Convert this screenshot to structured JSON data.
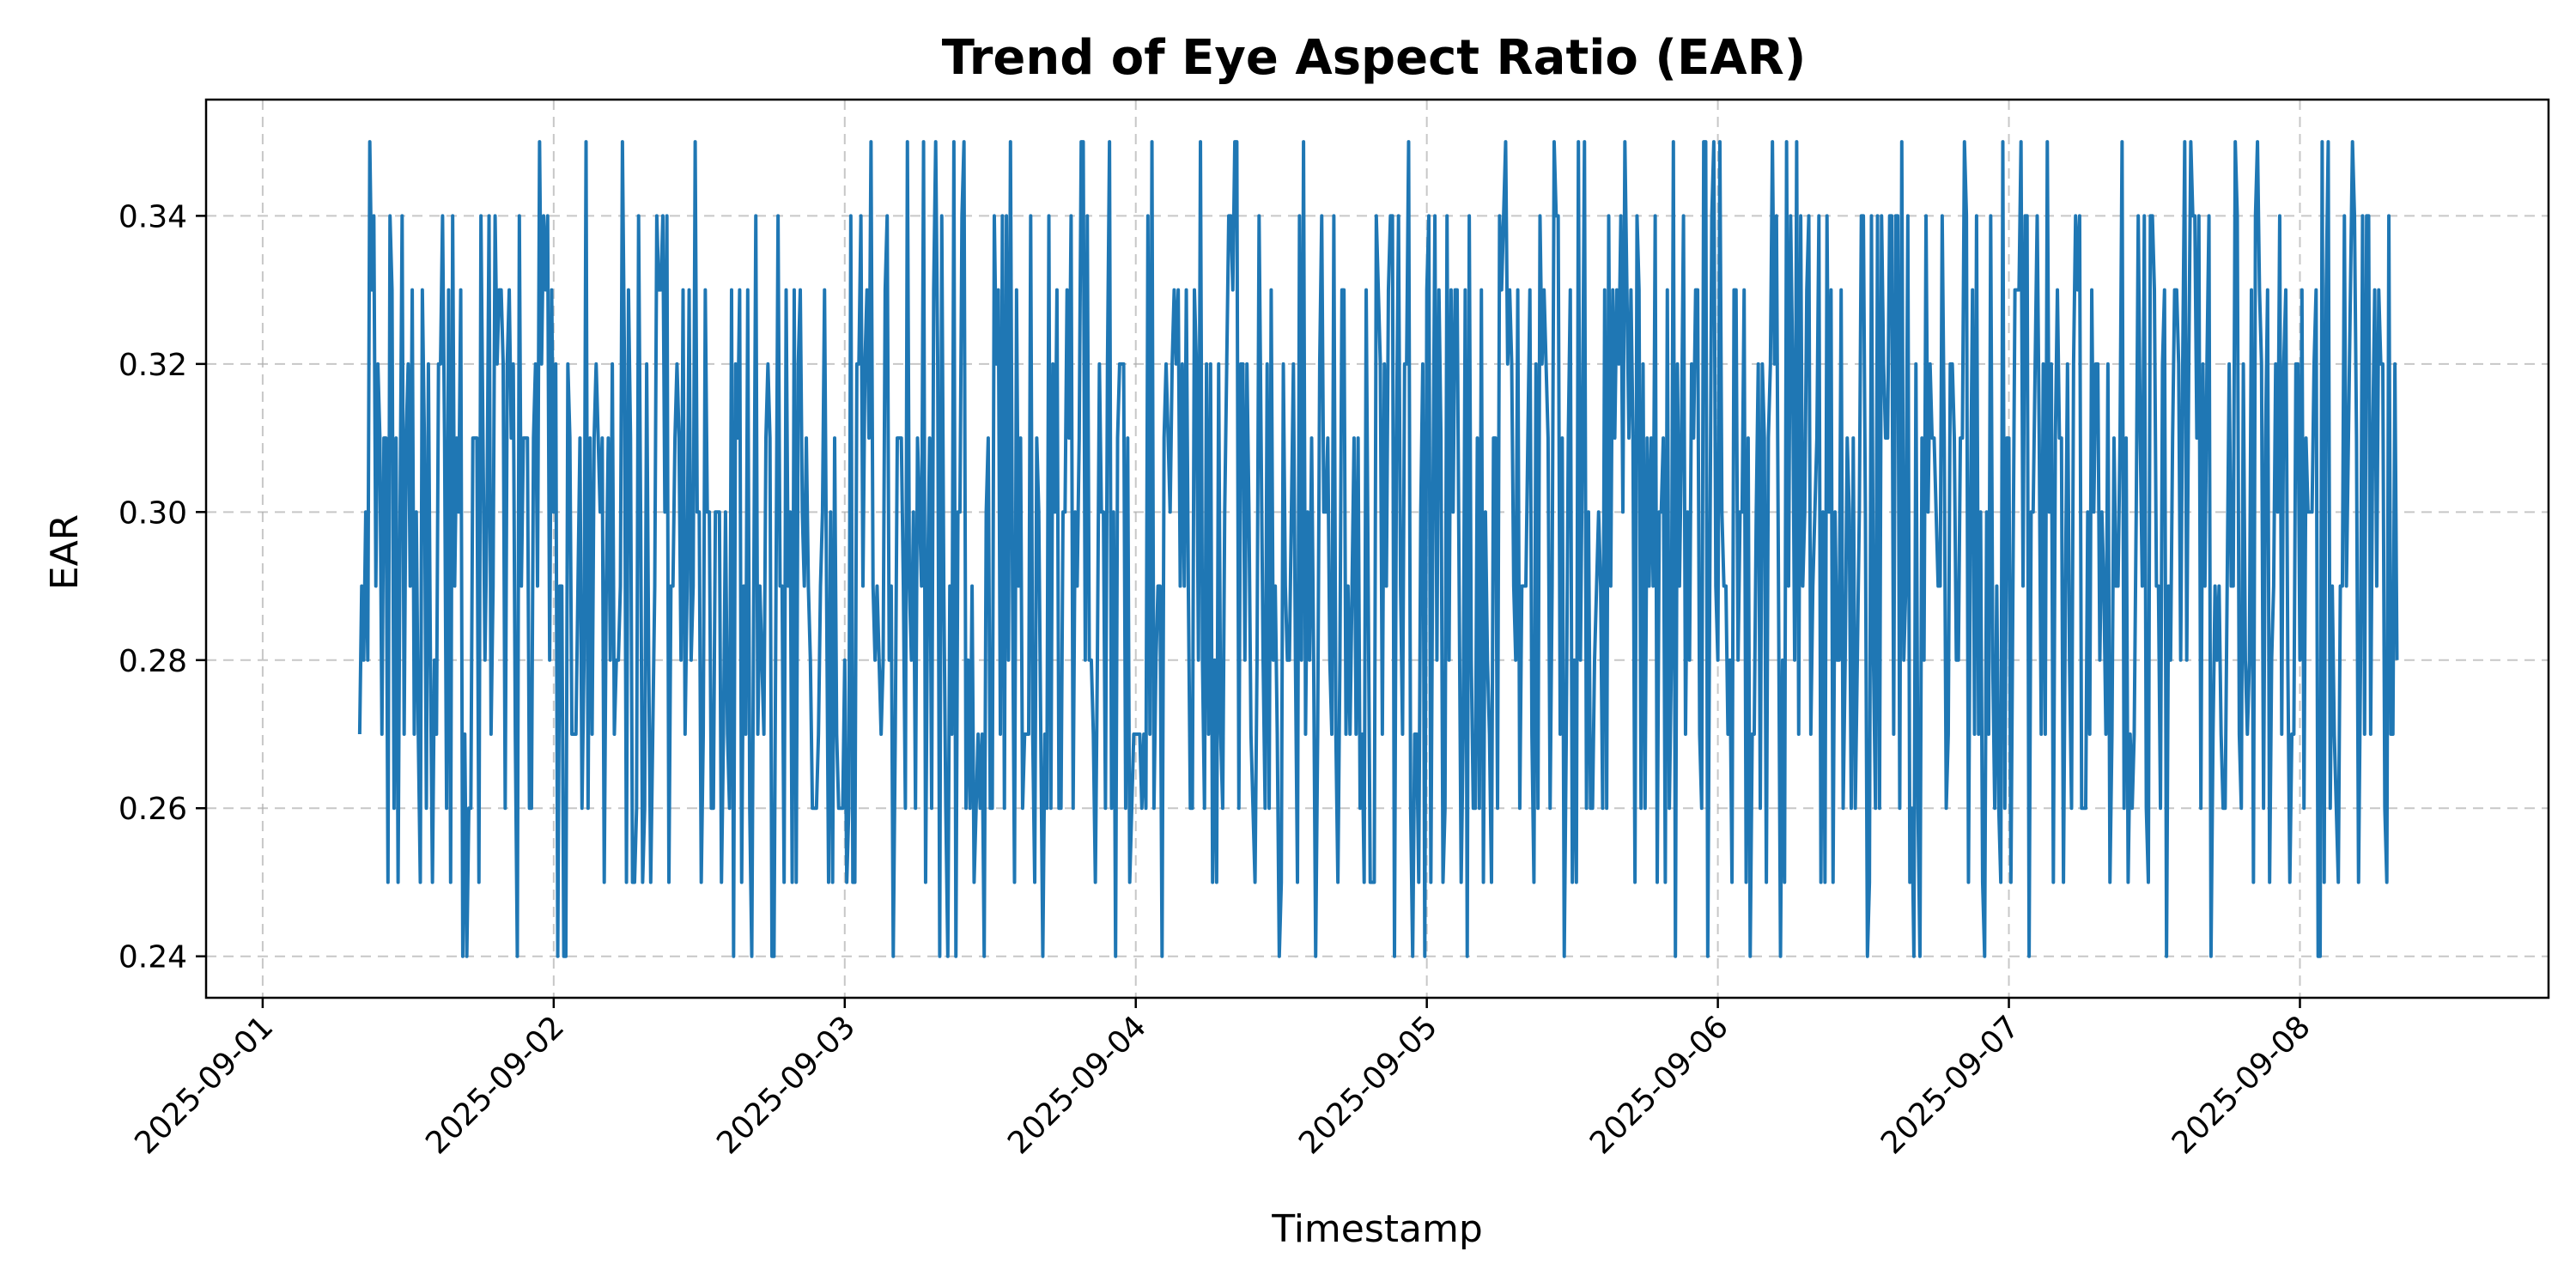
{
  "chart_data": {
    "type": "line",
    "title": "Trend of Eye Aspect Ratio (EAR)",
    "xlabel": "Timestamp",
    "ylabel": "EAR",
    "x_range": [
      "2025-08-31T19:20",
      "2025-09-08T20:30"
    ],
    "x_ticks": [
      "2025-09-01",
      "2025-09-02",
      "2025-09-03",
      "2025-09-04",
      "2025-09-05",
      "2025-09-06",
      "2025-09-07",
      "2025-09-08"
    ],
    "ylim": [
      0.2344,
      0.3557
    ],
    "y_ticks": [
      0.24,
      0.26,
      0.28,
      0.3,
      0.32,
      0.34
    ],
    "y_tick_labels": [
      "0.24",
      "0.26",
      "0.28",
      "0.30",
      "0.32",
      "0.34"
    ],
    "series": [
      {
        "color": "#1f77b4",
        "sampling_interval_minutes": 10,
        "x_start": "2025-09-01T08:00",
        "x_end": "2025-09-08T08:00",
        "value_levels": [
          0.24,
          0.25,
          0.26,
          0.27,
          0.28,
          0.29,
          0.3,
          0.31,
          0.32,
          0.33,
          0.34,
          0.35
        ],
        "value_min": 0.24,
        "value_max": 0.35
      }
    ],
    "grid": true,
    "legend": "none"
  }
}
